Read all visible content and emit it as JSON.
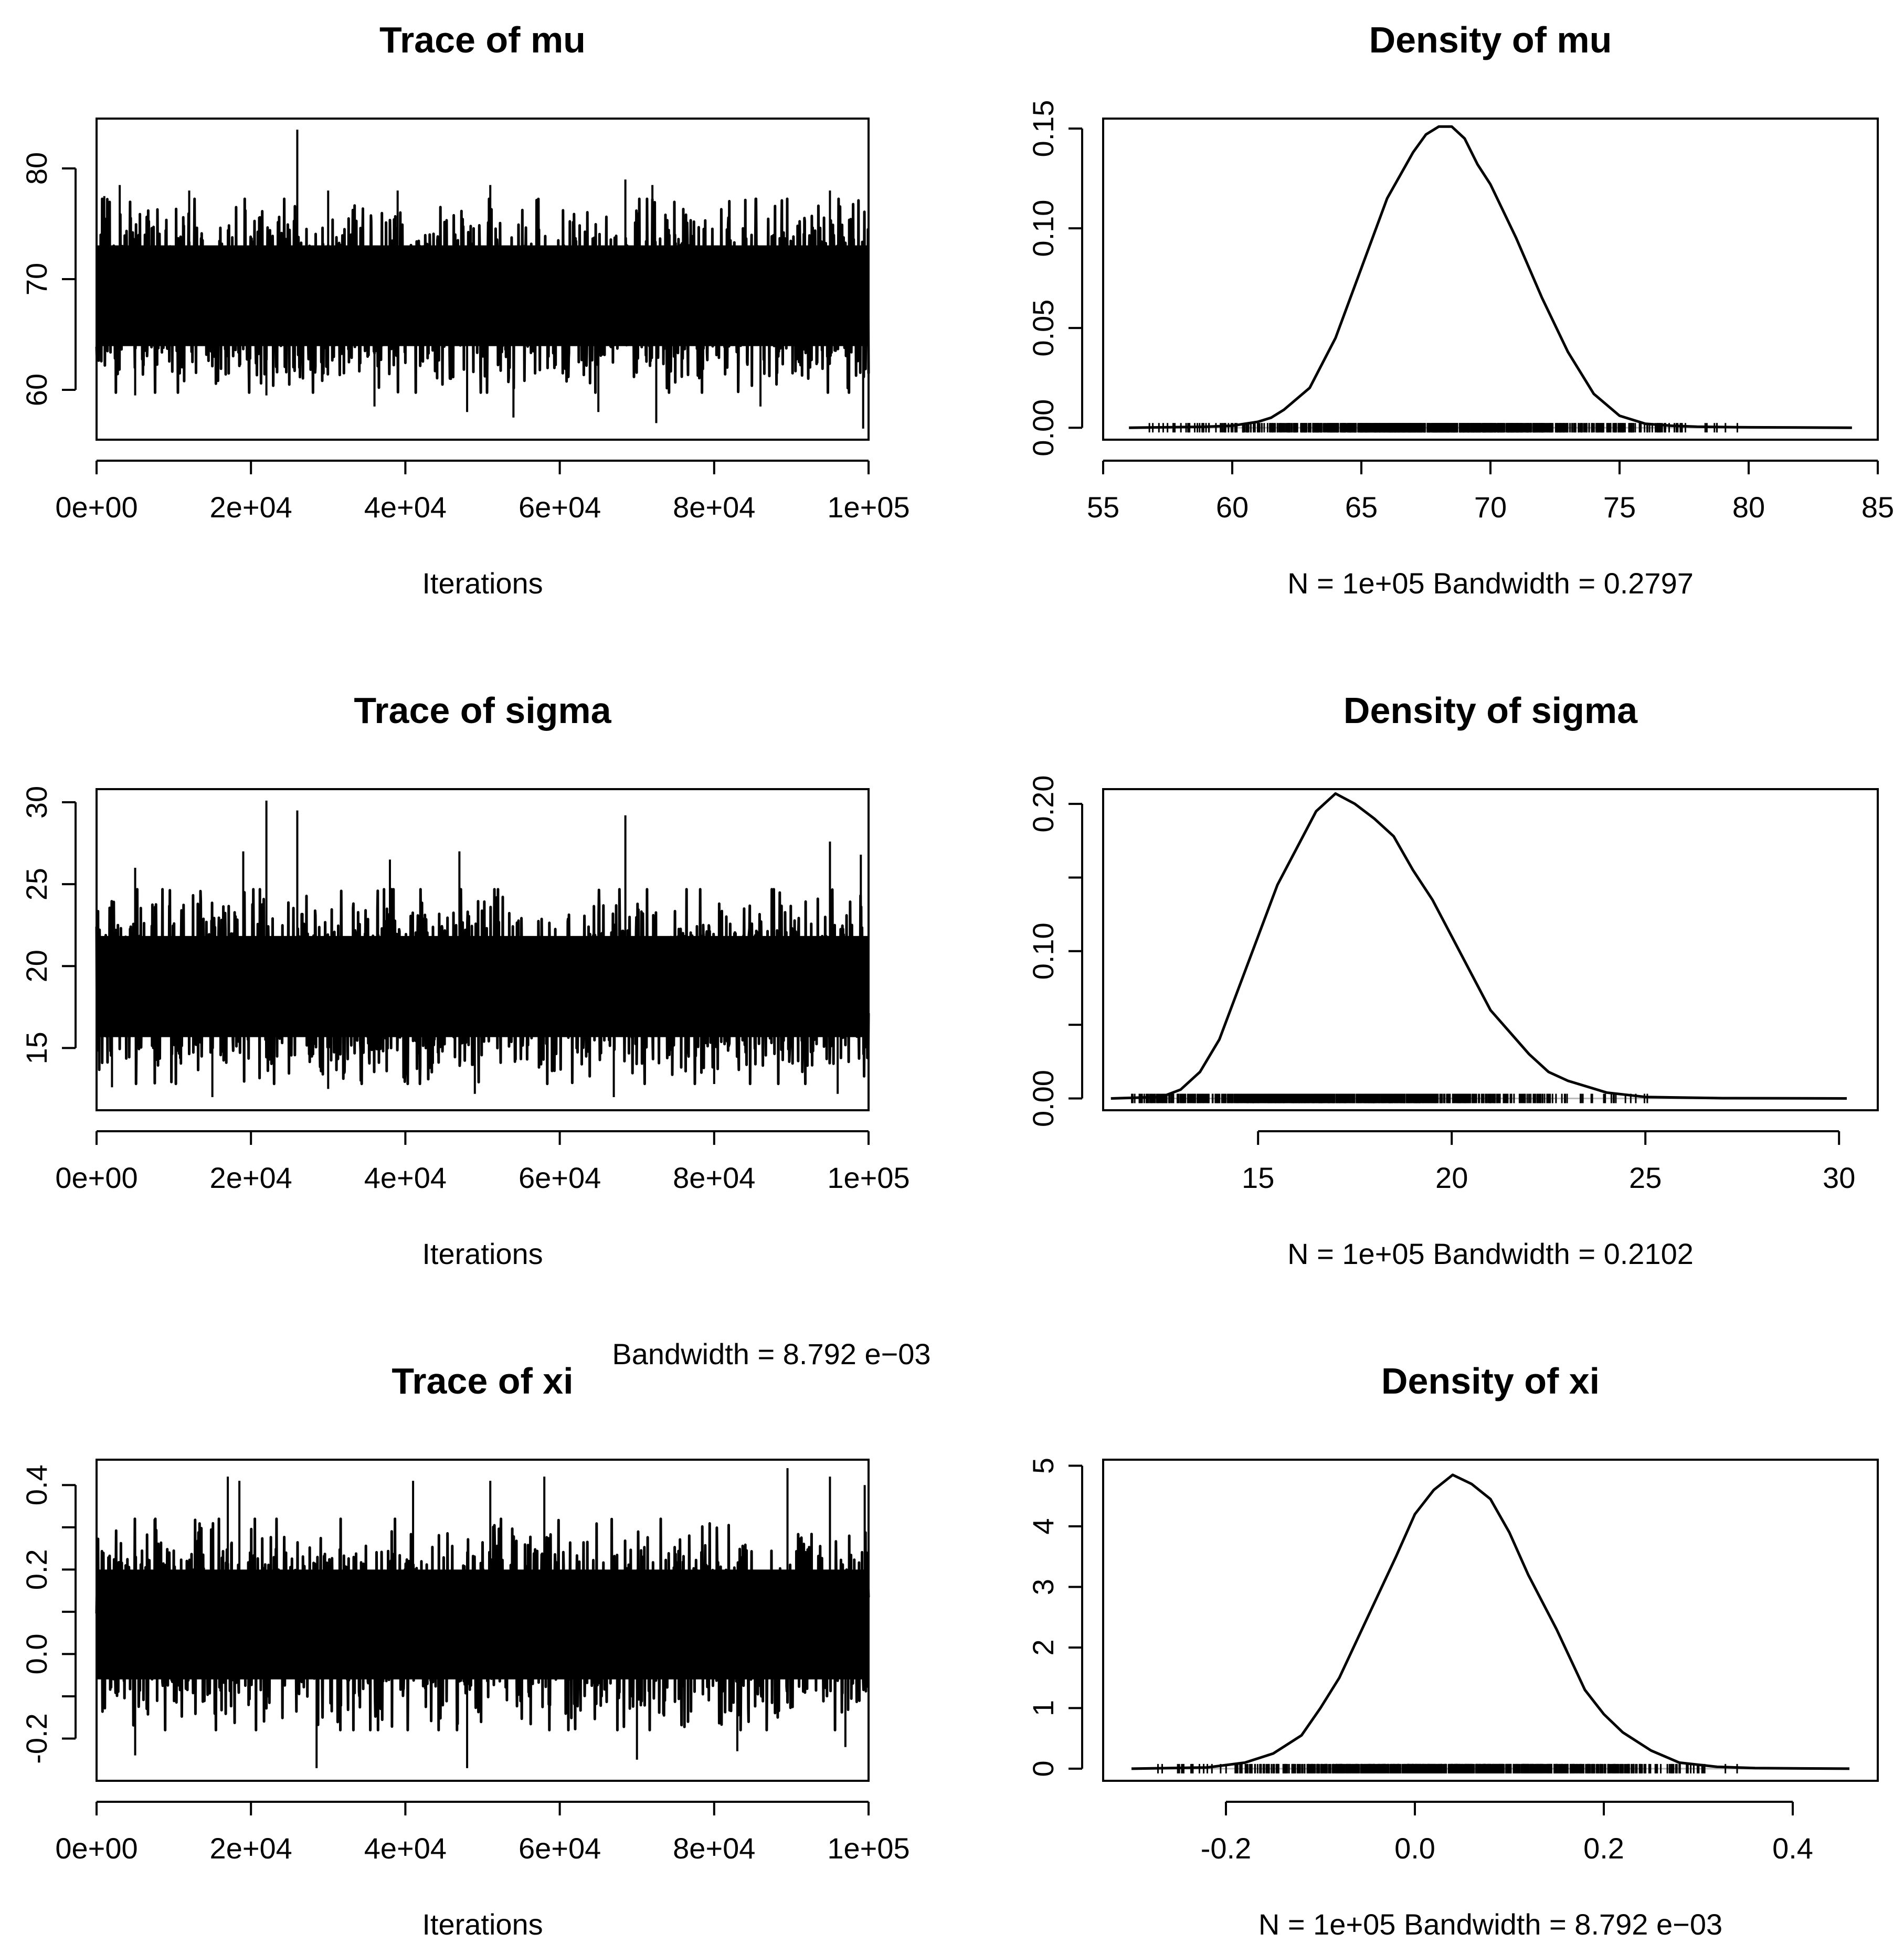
{
  "chart_data": [
    {
      "id": "trace-mu",
      "type": "line",
      "kind": "trace",
      "title": "Trace of mu",
      "xlabel": "Iterations",
      "xlim": [
        0,
        100000
      ],
      "ylim": [
        55.5,
        84.5
      ],
      "xticks": [
        0,
        20000,
        40000,
        60000,
        80000,
        100000
      ],
      "xtick_labels": [
        "0e+00",
        "2e+04",
        "4e+04",
        "6e+04",
        "8e+04",
        "1e+05"
      ],
      "yticks": [
        60,
        70,
        80
      ],
      "ytick_labels": [
        "60",
        "70",
        "80"
      ],
      "band": [
        61.5,
        75.5
      ],
      "spikes": [
        {
          "x": 1000,
          "y": 77.5
        },
        {
          "x": 3000,
          "y": 78.5
        },
        {
          "x": 12000,
          "y": 78
        },
        {
          "x": 26000,
          "y": 83.5
        },
        {
          "x": 30000,
          "y": 78
        },
        {
          "x": 39000,
          "y": 78
        },
        {
          "x": 51000,
          "y": 78.5
        },
        {
          "x": 68500,
          "y": 79
        },
        {
          "x": 72000,
          "y": 78.5
        },
        {
          "x": 95000,
          "y": 78
        },
        {
          "x": 5000,
          "y": 59.5
        },
        {
          "x": 22000,
          "y": 59.5
        },
        {
          "x": 36000,
          "y": 58.5
        },
        {
          "x": 48000,
          "y": 58
        },
        {
          "x": 54000,
          "y": 57.5
        },
        {
          "x": 65000,
          "y": 58
        },
        {
          "x": 72500,
          "y": 57
        },
        {
          "x": 86000,
          "y": 58.5
        },
        {
          "x": 99300,
          "y": 56.5
        }
      ]
    },
    {
      "id": "density-mu",
      "type": "line",
      "kind": "density",
      "title": "Density of mu",
      "xlabel": "N = 1e+05    Bandwidth = 0.2797",
      "xlim": [
        55,
        85
      ],
      "ylim": [
        -0.006,
        0.155
      ],
      "xticks": [
        55,
        60,
        65,
        70,
        75,
        80,
        85
      ],
      "xtick_labels": [
        "55",
        "60",
        "65",
        "70",
        "75",
        "80",
        "85"
      ],
      "yticks": [
        0.0,
        0.05,
        0.1,
        0.15
      ],
      "ytick_labels": [
        "0.00",
        "0.05",
        "0.10",
        "0.15"
      ],
      "baseline_range": [
        56,
        84
      ],
      "rug_range": [
        56.5,
        83.5
      ],
      "x": [
        56,
        59,
        60,
        61,
        61.5,
        62,
        63,
        64,
        65,
        66,
        67,
        67.5,
        68,
        68.5,
        69,
        69.5,
        70,
        71,
        72,
        73,
        74,
        75,
        76,
        77,
        78,
        80,
        84
      ],
      "y": [
        0.0,
        0.0005,
        0.001,
        0.003,
        0.005,
        0.009,
        0.02,
        0.045,
        0.08,
        0.115,
        0.138,
        0.147,
        0.151,
        0.151,
        0.145,
        0.132,
        0.122,
        0.095,
        0.065,
        0.038,
        0.017,
        0.006,
        0.002,
        0.001,
        0.0005,
        0.0002,
        0.0
      ]
    },
    {
      "id": "trace-sigma",
      "type": "line",
      "kind": "trace",
      "title": "Trace of sigma",
      "xlabel": "Iterations",
      "xlim": [
        0,
        100000
      ],
      "ylim": [
        11.2,
        30.8
      ],
      "xticks": [
        0,
        20000,
        40000,
        60000,
        80000,
        100000
      ],
      "xtick_labels": [
        "0e+00",
        "2e+04",
        "4e+04",
        "6e+04",
        "8e+04",
        "1e+05"
      ],
      "yticks": [
        15,
        20,
        25,
        30
      ],
      "ytick_labels": [
        "15",
        "20",
        "25",
        "30"
      ],
      "band": [
        14,
        23.5
      ],
      "spikes": [
        {
          "x": 0,
          "y": 27.7
        },
        {
          "x": 5000,
          "y": 26
        },
        {
          "x": 19000,
          "y": 27
        },
        {
          "x": 22000,
          "y": 30.1
        },
        {
          "x": 26000,
          "y": 29.5
        },
        {
          "x": 38000,
          "y": 26.5
        },
        {
          "x": 47000,
          "y": 27
        },
        {
          "x": 68500,
          "y": 29.2
        },
        {
          "x": 95000,
          "y": 27.6
        },
        {
          "x": 99000,
          "y": 26.8
        },
        {
          "x": 2000,
          "y": 12.6
        },
        {
          "x": 15000,
          "y": 12
        },
        {
          "x": 30000,
          "y": 12.5
        },
        {
          "x": 49000,
          "y": 12.2
        },
        {
          "x": 67000,
          "y": 12
        },
        {
          "x": 80000,
          "y": 12.8
        },
        {
          "x": 96000,
          "y": 12.2
        }
      ]
    },
    {
      "id": "density-sigma",
      "type": "line",
      "kind": "density",
      "title": "Density of sigma",
      "xlabel": "N = 1e+05   Bandwidth = 0.2102",
      "xlim": [
        11,
        31
      ],
      "ylim": [
        -0.008,
        0.21
      ],
      "xticks": [
        15,
        20,
        25,
        30
      ],
      "xtick_labels": [
        "15",
        "20",
        "25",
        "30"
      ],
      "yticks": [
        0.0,
        0.1,
        0.2
      ],
      "ytick_labels": [
        "0.00",
        "0.10",
        "0.20"
      ],
      "minor_yticks": [
        0.05,
        0.15
      ],
      "baseline_range": [
        11.2,
        30.2
      ],
      "rug_range": [
        11.7,
        30.1
      ],
      "x": [
        11.2,
        12.5,
        13,
        13.5,
        14,
        14.5,
        15,
        15.5,
        16,
        16.5,
        17,
        17.5,
        18,
        18.5,
        19,
        19.5,
        20,
        20.5,
        21,
        21.5,
        22,
        22.5,
        23,
        24,
        25,
        27,
        30.2
      ],
      "y": [
        0.0,
        0.001,
        0.006,
        0.018,
        0.04,
        0.075,
        0.11,
        0.145,
        0.17,
        0.195,
        0.207,
        0.2,
        0.19,
        0.178,
        0.155,
        0.135,
        0.11,
        0.085,
        0.06,
        0.045,
        0.03,
        0.018,
        0.012,
        0.004,
        0.001,
        0.0002,
        0.0
      ]
    },
    {
      "id": "trace-xi",
      "type": "line",
      "kind": "trace",
      "title": "Trace of xi",
      "xlabel": "Iterations",
      "xlim": [
        0,
        100000
      ],
      "ylim": [
        -0.3,
        0.46
      ],
      "xticks": [
        0,
        20000,
        40000,
        60000,
        80000,
        100000
      ],
      "xtick_labels": [
        "0e+00",
        "2e+04",
        "4e+04",
        "6e+04",
        "8e+04",
        "1e+05"
      ],
      "yticks": [
        -0.2,
        0.0,
        0.2,
        0.4
      ],
      "ytick_labels": [
        "-0.2",
        "0.0",
        "0.2",
        "0.4"
      ],
      "minor_yticks": [
        -0.1,
        0.1,
        0.3
      ],
      "band": [
        -0.13,
        0.27
      ],
      "spikes": [
        {
          "x": 17000,
          "y": 0.42
        },
        {
          "x": 18500,
          "y": 0.41
        },
        {
          "x": 41000,
          "y": 0.41
        },
        {
          "x": 51000,
          "y": 0.41
        },
        {
          "x": 58000,
          "y": 0.42
        },
        {
          "x": 89500,
          "y": 0.44
        },
        {
          "x": 95000,
          "y": 0.42
        },
        {
          "x": 99500,
          "y": 0.4
        },
        {
          "x": 5000,
          "y": -0.24
        },
        {
          "x": 28500,
          "y": -0.27
        },
        {
          "x": 48000,
          "y": -0.27
        },
        {
          "x": 70000,
          "y": -0.25
        },
        {
          "x": 83000,
          "y": -0.23
        },
        {
          "x": 97000,
          "y": -0.22
        }
      ]
    },
    {
      "id": "density-xi",
      "type": "line",
      "kind": "density",
      "title": "Density of xi",
      "xlabel": "N = 1e+05      Bandwidth = 8.792 e−03",
      "xlim": [
        -0.33,
        0.49
      ],
      "ylim": [
        -0.2,
        5.1
      ],
      "xticks": [
        -0.2,
        0.0,
        0.2,
        0.4
      ],
      "xtick_labels": [
        "-0.2",
        "0.0",
        "0.2",
        "0.4"
      ],
      "yticks": [
        0,
        1,
        2,
        3,
        4,
        5
      ],
      "ytick_labels": [
        "0",
        "1",
        "2",
        "3",
        "4",
        "5"
      ],
      "baseline_range": [
        -0.3,
        0.46
      ],
      "rug_range": [
        -0.28,
        0.44
      ],
      "x": [
        -0.3,
        -0.22,
        -0.18,
        -0.15,
        -0.12,
        -0.1,
        -0.08,
        -0.05,
        -0.02,
        0.0,
        0.02,
        0.04,
        0.06,
        0.08,
        0.1,
        0.12,
        0.15,
        0.18,
        0.2,
        0.22,
        0.25,
        0.28,
        0.32,
        0.36,
        0.46
      ],
      "y": [
        0.0,
        0.02,
        0.1,
        0.25,
        0.55,
        1.0,
        1.5,
        2.5,
        3.5,
        4.2,
        4.6,
        4.85,
        4.7,
        4.45,
        3.9,
        3.2,
        2.3,
        1.3,
        0.9,
        0.6,
        0.3,
        0.1,
        0.03,
        0.01,
        0.0
      ]
    }
  ],
  "stray_label": "Bandwidth = 8.792 e−03"
}
